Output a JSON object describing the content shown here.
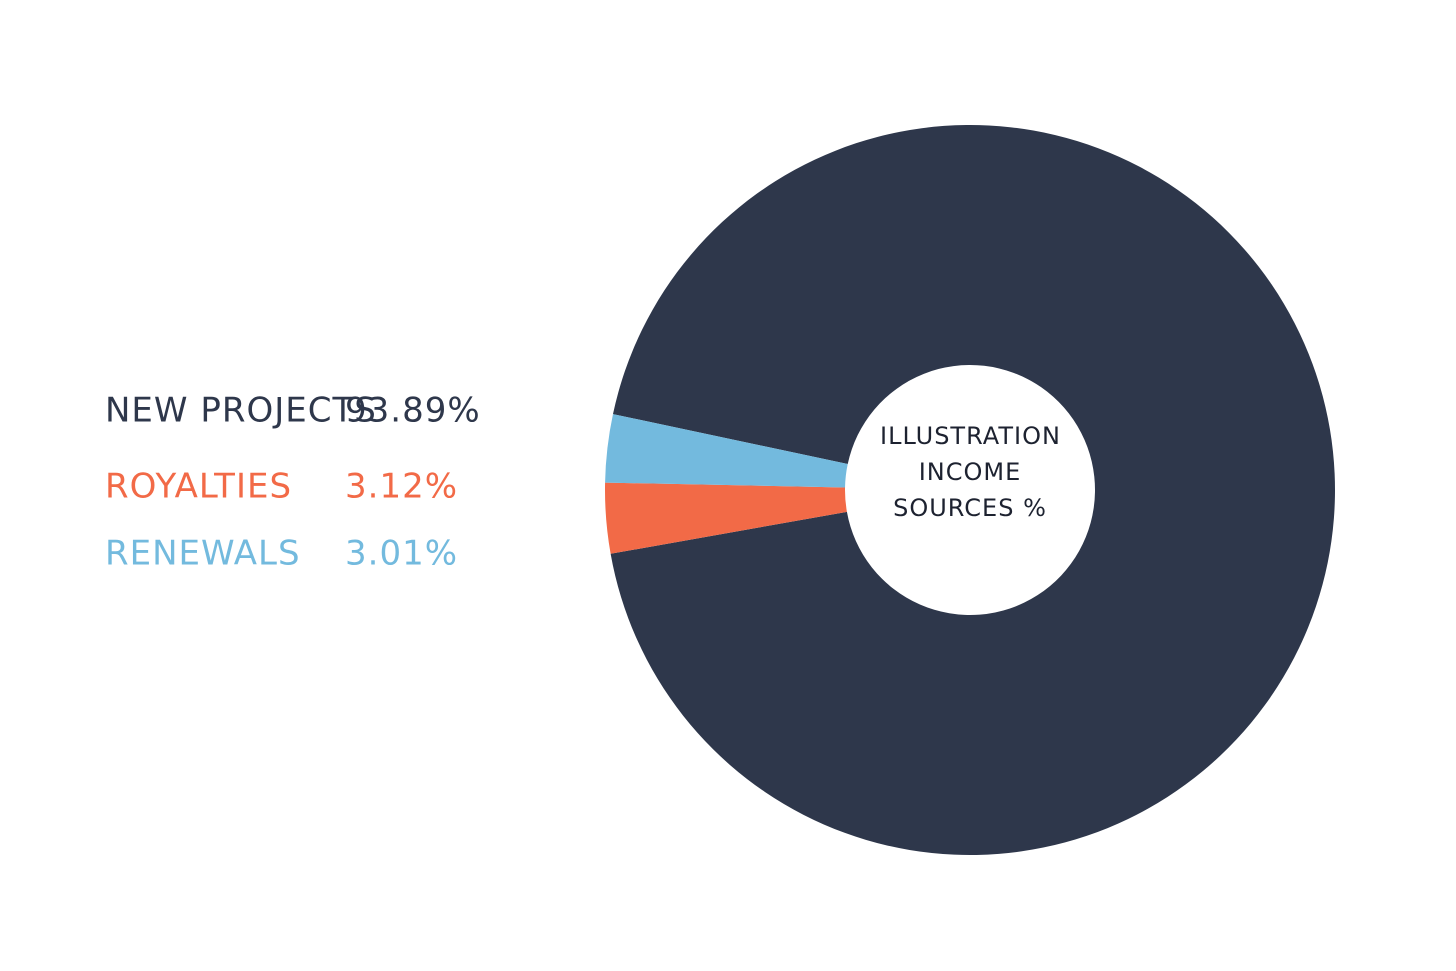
{
  "chart_data": {
    "type": "donut",
    "title": "ILLUSTRATION INCOME SOURCES %",
    "categories": [
      "NEW PROJECTS",
      "ROYALTIES",
      "RENEWALS"
    ],
    "values": [
      93.89,
      3.12,
      3.01
    ],
    "value_labels": [
      "93.89%",
      "3.12%",
      "3.01%"
    ],
    "colors": [
      "#2e374b",
      "#f26a47",
      "#73bade"
    ]
  }
}
